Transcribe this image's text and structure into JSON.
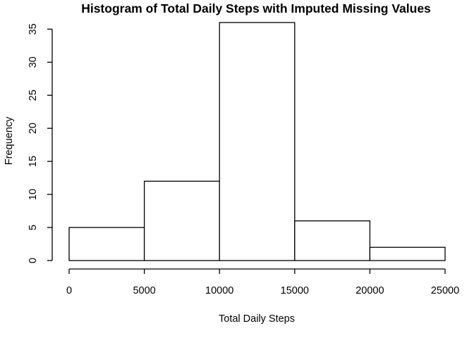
{
  "chart_data": {
    "type": "bar",
    "title": "Histogram of Total Daily Steps with Imputed Missing Values",
    "xlabel": "Total Daily Steps",
    "ylabel": "Frequency",
    "bins": [
      {
        "from": 0,
        "to": 5000,
        "count": 5
      },
      {
        "from": 5000,
        "to": 10000,
        "count": 12
      },
      {
        "from": 10000,
        "to": 15000,
        "count": 36
      },
      {
        "from": 15000,
        "to": 20000,
        "count": 6
      },
      {
        "from": 20000,
        "to": 25000,
        "count": 2
      }
    ],
    "xlim": [
      0,
      25000
    ],
    "ylim": [
      0,
      36
    ],
    "x_ticks": [
      "0",
      "5000",
      "10000",
      "15000",
      "20000",
      "25000"
    ],
    "y_ticks": [
      "0",
      "5",
      "10",
      "15",
      "20",
      "25",
      "30",
      "35"
    ],
    "grid": false,
    "bar_fill": "#ffffff",
    "bar_stroke": "#000000"
  }
}
